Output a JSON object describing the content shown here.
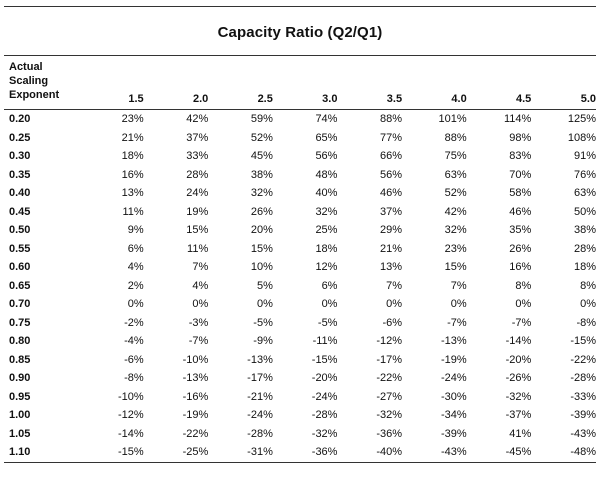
{
  "title": "Capacity Ratio (Q2/Q1)",
  "row_header": [
    "Actual",
    "Scaling",
    "Exponent"
  ],
  "columns": [
    "1.5",
    "2.0",
    "2.5",
    "3.0",
    "3.5",
    "4.0",
    "4.5",
    "5.0"
  ],
  "rows": [
    {
      "key": "0.20",
      "values": [
        "23%",
        "42%",
        "59%",
        "74%",
        "88%",
        "101%",
        "114%",
        "125%"
      ]
    },
    {
      "key": "0.25",
      "values": [
        "21%",
        "37%",
        "52%",
        "65%",
        "77%",
        "88%",
        "98%",
        "108%"
      ]
    },
    {
      "key": "0.30",
      "values": [
        "18%",
        "33%",
        "45%",
        "56%",
        "66%",
        "75%",
        "83%",
        "91%"
      ]
    },
    {
      "key": "0.35",
      "values": [
        "16%",
        "28%",
        "38%",
        "48%",
        "56%",
        "63%",
        "70%",
        "76%"
      ]
    },
    {
      "key": "0.40",
      "values": [
        "13%",
        "24%",
        "32%",
        "40%",
        "46%",
        "52%",
        "58%",
        "63%"
      ]
    },
    {
      "key": "0.45",
      "values": [
        "11%",
        "19%",
        "26%",
        "32%",
        "37%",
        "42%",
        "46%",
        "50%"
      ]
    },
    {
      "key": "0.50",
      "values": [
        "9%",
        "15%",
        "20%",
        "25%",
        "29%",
        "32%",
        "35%",
        "38%"
      ]
    },
    {
      "key": "0.55",
      "values": [
        "6%",
        "11%",
        "15%",
        "18%",
        "21%",
        "23%",
        "26%",
        "28%"
      ]
    },
    {
      "key": "0.60",
      "values": [
        "4%",
        "7%",
        "10%",
        "12%",
        "13%",
        "15%",
        "16%",
        "18%"
      ]
    },
    {
      "key": "0.65",
      "values": [
        "2%",
        "4%",
        "5%",
        "6%",
        "7%",
        "7%",
        "8%",
        "8%"
      ]
    },
    {
      "key": "0.70",
      "values": [
        "0%",
        "0%",
        "0%",
        "0%",
        "0%",
        "0%",
        "0%",
        "0%"
      ]
    },
    {
      "key": "0.75",
      "values": [
        "-2%",
        "-3%",
        "-5%",
        "-5%",
        "-6%",
        "-7%",
        "-7%",
        "-8%"
      ]
    },
    {
      "key": "0.80",
      "values": [
        "-4%",
        "-7%",
        "-9%",
        "-11%",
        "-12%",
        "-13%",
        "-14%",
        "-15%"
      ]
    },
    {
      "key": "0.85",
      "values": [
        "-6%",
        "-10%",
        "-13%",
        "-15%",
        "-17%",
        "-19%",
        "-20%",
        "-22%"
      ]
    },
    {
      "key": "0.90",
      "values": [
        "-8%",
        "-13%",
        "-17%",
        "-20%",
        "-22%",
        "-24%",
        "-26%",
        "-28%"
      ]
    },
    {
      "key": "0.95",
      "values": [
        "-10%",
        "-16%",
        "-21%",
        "-24%",
        "-27%",
        "-30%",
        "-32%",
        "-33%"
      ]
    },
    {
      "key": "1.00",
      "values": [
        "-12%",
        "-19%",
        "-24%",
        "-28%",
        "-32%",
        "-34%",
        "-37%",
        "-39%"
      ]
    },
    {
      "key": "1.05",
      "values": [
        "-14%",
        "-22%",
        "-28%",
        "-32%",
        "-36%",
        "-39%",
        "41%",
        "-43%"
      ]
    },
    {
      "key": "1.10",
      "values": [
        "-15%",
        "-25%",
        "-31%",
        "-36%",
        "-40%",
        "-43%",
        "-45%",
        "-48%"
      ]
    }
  ]
}
